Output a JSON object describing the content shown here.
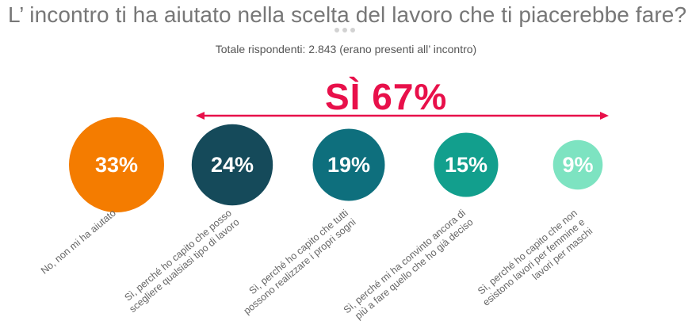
{
  "title": "L’ incontro ti ha aiutato nella scelta del lavoro che ti piacerebbe fare?",
  "subtitle": "Totale rispondenti: 2.843 (erano presenti all’ incontro)",
  "yes_label": "SÌ 67%",
  "colors": {
    "accent": "#e8104a",
    "title": "#777777",
    "circles": [
      "#f47c00",
      "#154a5a",
      "#0e6f7d",
      "#129f8d",
      "#7de3c1"
    ]
  },
  "chart_data": {
    "type": "bubble",
    "title": "L’ incontro ti ha aiutato nella scelta del lavoro che ti piacerebbe fare?",
    "subtitle": "Totale rispondenti: 2.843 (erano presenti all’ incontro)",
    "categories": [
      [
        "No, non mi ha aiutato"
      ],
      [
        "Sì, perché ho capito che posso",
        "scegliere qualsiasi tipo di lavoro"
      ],
      [
        "Sì, perché ho capito che tutti",
        "possono realizzare i propri sogni"
      ],
      [
        "Sì, perché mi ha convinto ancora di",
        "più a fare quello che ho già deciso"
      ],
      [
        "Sì, perché ho capito che non",
        "esistono lavori per femmine e",
        "lavori per maschi"
      ]
    ],
    "values": [
      33,
      24,
      19,
      15,
      9
    ],
    "value_labels": [
      "33%",
      "24%",
      "19%",
      "15%",
      "9%"
    ],
    "annotation": "SÌ 67%"
  }
}
